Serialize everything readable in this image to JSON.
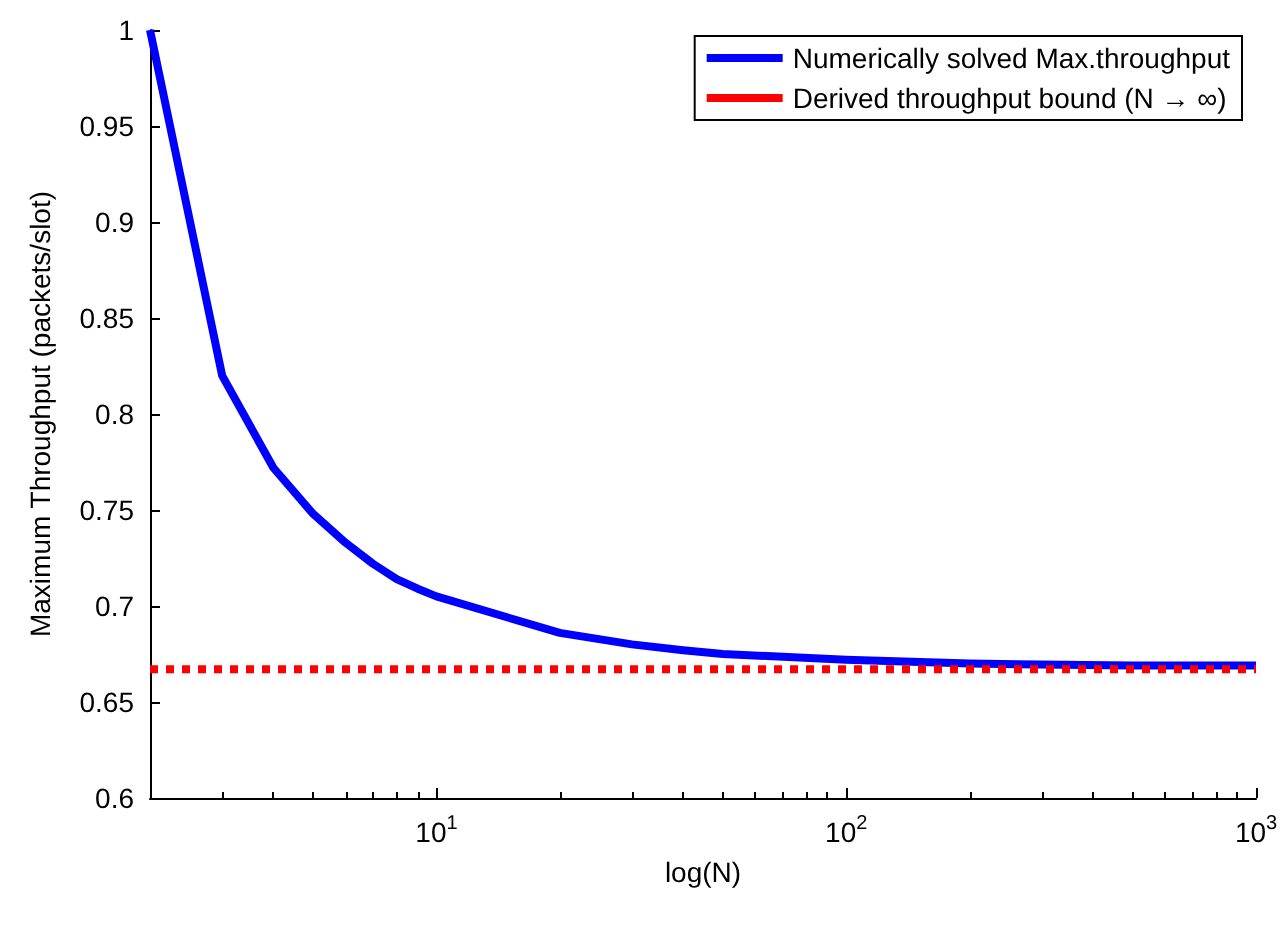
{
  "chart_data": {
    "type": "line",
    "xlabel": "log(N)",
    "ylabel": "Maximum Throughput (packets/slot)",
    "series": [
      {
        "name": "Numerically solved Max.throughput",
        "color": "#0000ff",
        "line_style": "solid",
        "x": [
          2,
          3,
          4,
          5,
          6,
          7,
          8,
          9,
          10,
          20,
          30,
          40,
          50,
          100,
          200,
          500,
          1000
        ],
        "values": [
          1.0,
          0.82,
          0.772,
          0.748,
          0.733,
          0.722,
          0.714,
          0.709,
          0.705,
          0.686,
          0.68,
          0.677,
          0.675,
          0.672,
          0.67,
          0.669,
          0.669
        ]
      },
      {
        "name": "Derived throughput bound (N → ∞)",
        "color": "#ff0000",
        "line_style": "dashed",
        "x": [
          2,
          1000
        ],
        "values": [
          0.667,
          0.667
        ]
      }
    ],
    "log": "x",
    "xlim": [
      2,
      1000
    ],
    "xticks": [
      {
        "value": 10,
        "label": "10$^{1}$"
      },
      {
        "value": 100,
        "label": "10$^{2}$"
      },
      {
        "value": 1000,
        "label": "10$^{3}$"
      }
    ],
    "ylim": [
      0.6,
      1
    ],
    "yticks": [
      0.6,
      0.65,
      0.7,
      0.75,
      0.8,
      0.85,
      0.9,
      0.95,
      1
    ],
    "grid": false,
    "legend": "top right",
    "marker": "none"
  }
}
